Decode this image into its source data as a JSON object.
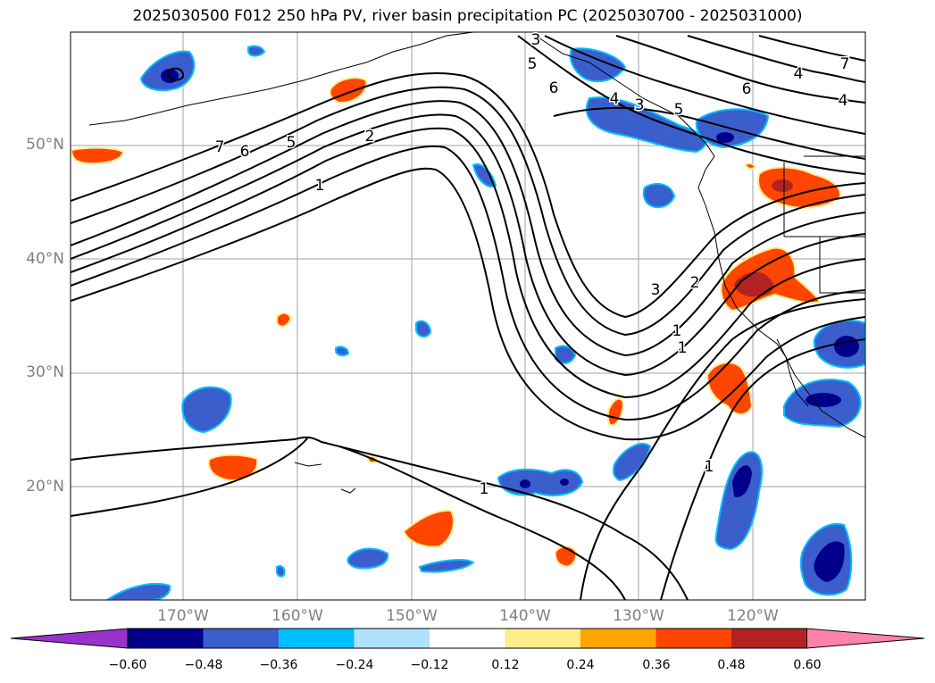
{
  "title": "2025030500 F012 250 hPa PV, river basin precipitation PC (2025030700 - 2025031000)",
  "map": {
    "projection": "lat-lon",
    "lon_range": [
      -180,
      -110
    ],
    "lat_range": [
      10,
      60
    ],
    "gridlines": true,
    "lat_labels": [
      "50°N",
      "40°N",
      "30°N",
      "20°N"
    ],
    "lon_labels": [
      "170°W",
      "160°W",
      "150°W",
      "140°W",
      "130°W",
      "120°W"
    ],
    "contour_labels": [
      "7",
      "6",
      "5",
      "2",
      "1",
      "3",
      "5",
      "6",
      "4",
      "3",
      "5",
      "6",
      "4",
      "7",
      "4",
      "3",
      "2",
      "1",
      "1",
      "1",
      "1"
    ],
    "pv_contour_color": "#000000"
  },
  "colorbar": {
    "tick_labels": [
      "−0.60",
      "−0.48",
      "−0.36",
      "−0.24",
      "−0.12",
      "0.12",
      "0.24",
      "0.36",
      "0.48",
      "0.60"
    ],
    "colors": [
      "#9932cc",
      "#00008b",
      "#3a5fcd",
      "#00bfff",
      "#b0e2ff",
      "#ffffff",
      "#ffec8b",
      "#ffa500",
      "#ff4500",
      "#b22222",
      "#ff82ab"
    ],
    "extend": "both"
  }
}
